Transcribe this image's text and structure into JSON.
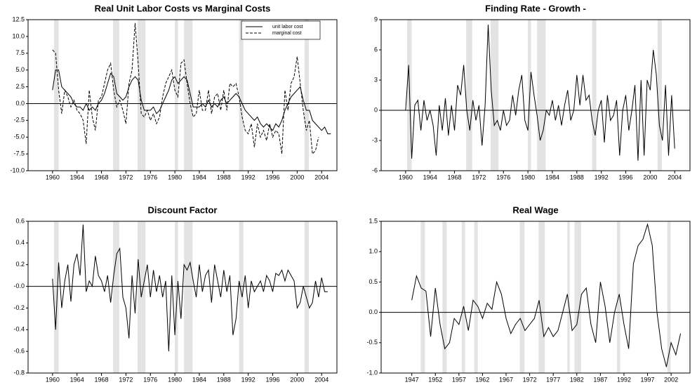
{
  "chart_data": [
    {
      "type": "line",
      "title": "Real Unit Labor Costs vs Marginal Costs",
      "x": [
        1960,
        1960.5,
        1961,
        1961.5,
        1962,
        1962.5,
        1963,
        1963.5,
        1964,
        1964.5,
        1965,
        1965.5,
        1966,
        1966.5,
        1967,
        1967.5,
        1968,
        1968.5,
        1969,
        1969.5,
        1970,
        1970.5,
        1971,
        1971.5,
        1972,
        1972.5,
        1973,
        1973.5,
        1974,
        1974.5,
        1975,
        1975.5,
        1976,
        1976.5,
        1977,
        1977.5,
        1978,
        1978.5,
        1979,
        1979.5,
        1980,
        1980.5,
        1981,
        1981.5,
        1982,
        1982.5,
        1983,
        1983.5,
        1984,
        1984.5,
        1985,
        1985.5,
        1986,
        1986.5,
        1987,
        1987.5,
        1988,
        1988.5,
        1989,
        1989.5,
        1990,
        1990.5,
        1991,
        1991.5,
        1992,
        1992.5,
        1993,
        1993.5,
        1994,
        1994.5,
        1995,
        1995.5,
        1996,
        1996.5,
        1997,
        1997.5,
        1998,
        1998.5,
        1999,
        1999.5,
        2000,
        2000.5,
        2001,
        2001.5,
        2002,
        2002.5,
        2003,
        2003.5,
        2004,
        2004.5,
        2005,
        2005.5
      ],
      "series": [
        {
          "name": "unit labor cost",
          "color": "#000000",
          "dashed": false,
          "values": [
            2,
            5,
            5,
            2.5,
            2,
            1.5,
            1,
            0,
            -0.5,
            -0.5,
            -1,
            0,
            -1,
            -0.5,
            -1,
            0,
            0.5,
            1.5,
            3,
            4.5,
            4,
            1.5,
            1,
            0.5,
            1,
            2.5,
            3.5,
            4,
            3.5,
            0.5,
            -1,
            -1,
            -1,
            -0.5,
            -1.5,
            -1,
            0,
            1,
            2,
            3.5,
            4,
            3,
            3.5,
            4,
            3.5,
            1.5,
            -0.5,
            -0.5,
            -0.5,
            0,
            -0.5,
            0.5,
            -0.5,
            0,
            -0.5,
            0.5,
            1,
            0,
            0.5,
            1,
            1.5,
            1,
            0,
            -1,
            -1.5,
            -2,
            -2.5,
            -2,
            -3,
            -3.5,
            -3,
            -3.5,
            -4,
            -3,
            -3.5,
            -2.5,
            -1,
            0,
            1,
            1.5,
            2,
            2.5,
            0.5,
            -1,
            -1,
            -2.5,
            -3,
            -3.5,
            -4,
            -3.5,
            -4.5,
            -4.5
          ]
        },
        {
          "name": "marginal cost",
          "color": "#000000",
          "dashed": true,
          "values": [
            8,
            7.5,
            2,
            -1.5,
            2,
            1,
            -0.5,
            0.5,
            -1,
            -1.5,
            -2.5,
            -6,
            2,
            -2,
            -4,
            0.5,
            1,
            3,
            5,
            6,
            2,
            -0.5,
            0.5,
            -1,
            -3,
            3,
            5,
            12,
            6,
            -1.5,
            -2,
            -1,
            -2.5,
            -1.5,
            -3,
            -2,
            1,
            3,
            4,
            5,
            2,
            1,
            6,
            6.5,
            3,
            0,
            -2,
            -1.5,
            2,
            -1,
            -1,
            2,
            -1.5,
            1,
            1.5,
            -1,
            2,
            -1,
            3,
            2.5,
            3,
            1,
            -2,
            -4,
            -4.5,
            -3,
            -6.5,
            -3,
            -5,
            -4,
            -5.5,
            -3,
            -5,
            -4,
            -4.5,
            -7.5,
            2,
            -1,
            3,
            4,
            7,
            3,
            -1,
            -4,
            -2.5,
            -7.5,
            -7,
            -5,
            null,
            null,
            null,
            null
          ]
        }
      ],
      "xlim": [
        1956,
        2006.5
      ],
      "ylim": [
        -10,
        12.5
      ],
      "xticks": [
        1960,
        1964,
        1968,
        1972,
        1976,
        1980,
        1984,
        1988,
        1992,
        1996,
        2000,
        2004
      ],
      "yticks": [
        {
          "value": -10,
          "label": "-10.0"
        },
        {
          "value": -7.5,
          "label": "-7.5"
        },
        {
          "value": -5,
          "label": "-5.0"
        },
        {
          "value": -2.5,
          "label": "-2.5"
        },
        {
          "value": 0,
          "label": "0.0"
        },
        {
          "value": 2.5,
          "label": "2.5"
        },
        {
          "value": 5,
          "label": "5.0"
        },
        {
          "value": 7.5,
          "label": "7.5"
        },
        {
          "value": 10,
          "label": "10.0"
        },
        {
          "value": 12.5,
          "label": "12.5"
        }
      ],
      "recessions": [
        [
          1960.25,
          1961
        ],
        [
          1969.9,
          1970.9
        ],
        [
          1973.9,
          1975.2
        ],
        [
          1980,
          1980.5
        ],
        [
          1981.5,
          1982.9
        ],
        [
          1990.5,
          1991.2
        ],
        [
          2001.2,
          2001.9
        ]
      ],
      "zero_line": true,
      "legend": "upper right"
    },
    {
      "type": "line",
      "title": "Finding Rate - Growth -",
      "x": [
        1960,
        1960.5,
        1961,
        1961.5,
        1962,
        1962.5,
        1963,
        1963.5,
        1964,
        1964.5,
        1965,
        1965.5,
        1966,
        1966.5,
        1967,
        1967.5,
        1968,
        1968.5,
        1969,
        1969.5,
        1970,
        1970.5,
        1971,
        1971.5,
        1972,
        1972.5,
        1973,
        1973.5,
        1974,
        1974.5,
        1975,
        1975.5,
        1976,
        1976.5,
        1977,
        1977.5,
        1978,
        1978.5,
        1979,
        1979.5,
        1980,
        1980.5,
        1981,
        1981.5,
        1982,
        1982.5,
        1983,
        1983.5,
        1984,
        1984.5,
        1985,
        1985.5,
        1986,
        1986.5,
        1987,
        1987.5,
        1988,
        1988.5,
        1989,
        1989.5,
        1990,
        1990.5,
        1991,
        1991.5,
        1992,
        1992.5,
        1993,
        1993.5,
        1994,
        1994.5,
        1995,
        1995.5,
        1996,
        1996.5,
        1997,
        1997.5,
        1998,
        1998.5,
        1999,
        1999.5,
        2000,
        2000.5,
        2001,
        2001.5,
        2002,
        2002.5,
        2003,
        2003.5,
        2004
      ],
      "series": [
        {
          "color": "#000000",
          "dashed": false,
          "values": [
            0,
            4.5,
            -4.8,
            0.5,
            1,
            -2,
            1,
            -1,
            0,
            -1.5,
            -4.5,
            0.5,
            -2,
            1.2,
            -2.5,
            0.5,
            -2,
            2.5,
            1.5,
            4.5,
            0,
            -2,
            1,
            -1,
            0.5,
            -3.5,
            0.5,
            8.5,
            2,
            -1.5,
            -1,
            -2,
            0,
            -1.5,
            -1,
            1.5,
            -0.5,
            2,
            3.5,
            -1,
            -2,
            3.8,
            1.5,
            -0.5,
            -3,
            -2,
            0,
            -0.5,
            1,
            -1,
            0.5,
            -1.5,
            0.5,
            2,
            -1,
            0,
            3.5,
            0.5,
            3.5,
            1,
            1.5,
            -1,
            -2.5,
            0,
            1,
            -3.2,
            1.5,
            -1,
            -0.5,
            1,
            -4.5,
            0,
            1.5,
            -2,
            0,
            2.5,
            -5,
            3,
            -4.5,
            3,
            2,
            6,
            3.5,
            -1.5,
            -3,
            2.5,
            -4.5,
            1.5,
            -3.8
          ]
        }
      ],
      "xlim": [
        1956,
        2006.5
      ],
      "ylim": [
        -6,
        9
      ],
      "xticks": [
        1960,
        1964,
        1968,
        1972,
        1976,
        1980,
        1984,
        1988,
        1992,
        1996,
        2000,
        2004
      ],
      "yticks": [
        -6,
        -3,
        0,
        3,
        6,
        9
      ],
      "recessions": [
        [
          1960.25,
          1961
        ],
        [
          1969.9,
          1970.9
        ],
        [
          1973.9,
          1975.2
        ],
        [
          1980,
          1980.5
        ],
        [
          1981.5,
          1982.9
        ],
        [
          1990.5,
          1991.2
        ],
        [
          2001.2,
          2001.9
        ]
      ],
      "zero_line": true
    },
    {
      "type": "line",
      "title": "Discount Factor",
      "x": [
        1960,
        1960.5,
        1961,
        1961.5,
        1962,
        1962.5,
        1963,
        1963.5,
        1964,
        1964.5,
        1965,
        1965.5,
        1966,
        1966.5,
        1967,
        1967.5,
        1968,
        1968.5,
        1969,
        1969.5,
        1970,
        1970.5,
        1971,
        1971.5,
        1972,
        1972.5,
        1973,
        1973.5,
        1974,
        1974.5,
        1975,
        1975.5,
        1976,
        1976.5,
        1977,
        1977.5,
        1978,
        1978.5,
        1979,
        1979.5,
        1980,
        1980.5,
        1981,
        1981.5,
        1982,
        1982.5,
        1983,
        1983.5,
        1984,
        1984.5,
        1985,
        1985.5,
        1986,
        1986.5,
        1987,
        1987.5,
        1988,
        1988.5,
        1989,
        1989.5,
        1990,
        1990.5,
        1991,
        1991.5,
        1992,
        1992.5,
        1993,
        1993.5,
        1994,
        1994.5,
        1995,
        1995.5,
        1996,
        1996.5,
        1997,
        1997.5,
        1998,
        1998.5,
        1999,
        1999.5,
        2000,
        2000.5,
        2001,
        2001.5,
        2002,
        2002.5,
        2003,
        2003.5,
        2004,
        2004.5,
        2005
      ],
      "series": [
        {
          "color": "#000000",
          "dashed": false,
          "values": [
            0.07,
            -0.4,
            0.22,
            -0.2,
            0.05,
            0.2,
            -0.14,
            0.2,
            0.3,
            0.1,
            0.57,
            -0.05,
            0.05,
            0,
            0.28,
            0.1,
            0.05,
            -0.05,
            0.1,
            -0.15,
            0.1,
            0.3,
            0.35,
            -0.1,
            -0.2,
            -0.48,
            0.1,
            -0.25,
            0.25,
            -0.1,
            0.05,
            0.2,
            -0.1,
            0.15,
            -0.05,
            0.1,
            -0.1,
            0.05,
            -0.6,
            0.1,
            -0.45,
            0.05,
            -0.3,
            0.2,
            0.15,
            0.22,
            0.05,
            -0.1,
            0.2,
            -0.05,
            0.1,
            0.15,
            -0.15,
            0.2,
            0.05,
            -0.1,
            0.15,
            -0.05,
            0.1,
            -0.45,
            -0.3,
            0.05,
            -0.1,
            0.1,
            -0.2,
            0.05,
            -0.05,
            0,
            0.05,
            -0.05,
            0.1,
            0.05,
            -0.05,
            0.12,
            0.1,
            0.15,
            0.05,
            0.15,
            0.1,
            0.05,
            -0.2,
            -0.15,
            0,
            -0.1,
            -0.2,
            -0.15,
            0.05,
            -0.1,
            0.08,
            -0.05,
            -0.05
          ]
        }
      ],
      "xlim": [
        1956,
        2006.5
      ],
      "ylim": [
        -0.8,
        0.6
      ],
      "xticks": [
        1960,
        1964,
        1968,
        1972,
        1976,
        1980,
        1984,
        1988,
        1992,
        1996,
        2000,
        2004
      ],
      "yticks": [
        -0.8,
        -0.6,
        -0.4,
        -0.2,
        {
          "value": 0,
          "label": "-0.0"
        },
        0.2,
        0.4,
        0.6
      ],
      "recessions": [
        [
          1960.25,
          1961
        ],
        [
          1969.9,
          1970.9
        ],
        [
          1973.9,
          1975.2
        ],
        [
          1980,
          1980.5
        ],
        [
          1981.5,
          1982.9
        ],
        [
          1990.5,
          1991.2
        ],
        [
          2001.2,
          2001.9
        ]
      ],
      "zero_line": true
    },
    {
      "type": "line",
      "title": "Real Wage",
      "x": [
        1947,
        1948,
        1949,
        1950,
        1951,
        1952,
        1953,
        1954,
        1955,
        1956,
        1957,
        1958,
        1959,
        1960,
        1961,
        1962,
        1963,
        1964,
        1965,
        1966,
        1967,
        1968,
        1969,
        1970,
        1971,
        1972,
        1973,
        1974,
        1975,
        1976,
        1977,
        1978,
        1979,
        1980,
        1981,
        1982,
        1983,
        1984,
        1985,
        1986,
        1987,
        1988,
        1989,
        1990,
        1991,
        1992,
        1993,
        1994,
        1995,
        1996,
        1997,
        1998,
        1999,
        2000,
        2001,
        2002,
        2003,
        2004
      ],
      "series": [
        {
          "color": "#000000",
          "dashed": false,
          "values": [
            0.2,
            0.6,
            0.4,
            0.35,
            -0.4,
            0.4,
            -0.2,
            -0.6,
            -0.5,
            -0.1,
            -0.2,
            0.1,
            -0.3,
            0.2,
            0.1,
            -0.1,
            0.15,
            0.05,
            0.5,
            0.3,
            -0.1,
            -0.35,
            -0.2,
            -0.1,
            -0.3,
            -0.2,
            -0.1,
            0.2,
            -0.4,
            -0.25,
            -0.4,
            -0.3,
            0,
            0.3,
            -0.3,
            -0.2,
            0.3,
            0.4,
            -0.2,
            -0.5,
            0.5,
            0.1,
            -0.5,
            0,
            0.3,
            -0.2,
            -0.6,
            0.8,
            1.1,
            1.2,
            1.45,
            1.1,
            0,
            -0.6,
            -0.9,
            -0.5,
            -0.7,
            -0.35
          ]
        }
      ],
      "xlim": [
        1940.5,
        2006
      ],
      "ylim": [
        -1,
        1.5
      ],
      "xticks": [
        1947,
        1952,
        1957,
        1962,
        1967,
        1972,
        1977,
        1982,
        1987,
        1992,
        1997,
        2002
      ],
      "yticks": [
        {
          "value": -1,
          "label": "-1.0"
        },
        -0.5,
        {
          "value": 0,
          "label": "0.0"
        },
        0.5,
        {
          "value": 1,
          "label": "1.0"
        },
        1.5
      ],
      "recessions": [
        [
          1948.9,
          1949.8
        ],
        [
          1953.5,
          1954.4
        ],
        [
          1957.6,
          1958.3
        ],
        [
          1960.25,
          1961
        ],
        [
          1969.9,
          1970.9
        ],
        [
          1973.9,
          1975.2
        ],
        [
          1980,
          1980.5
        ],
        [
          1981.5,
          1982.9
        ],
        [
          1990.5,
          1991.2
        ],
        [
          2001.2,
          2001.9
        ]
      ],
      "zero_line": true
    }
  ]
}
